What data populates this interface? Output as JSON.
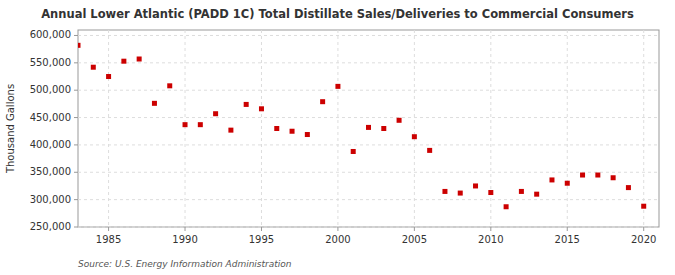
{
  "chart_data": {
    "type": "scatter",
    "title": "Annual Lower Atlantic (PADD 1C) Total Distillate Sales/Deliveries to Commercial Consumers",
    "ylabel": "Thousand Gallons",
    "source": "Source: U.S. Energy Information Administration",
    "x": [
      1983,
      1984,
      1985,
      1986,
      1987,
      1988,
      1989,
      1990,
      1991,
      1992,
      1993,
      1994,
      1995,
      1996,
      1997,
      1998,
      1999,
      2000,
      2001,
      2002,
      2003,
      2004,
      2005,
      2006,
      2007,
      2008,
      2009,
      2010,
      2011,
      2012,
      2013,
      2014,
      2015,
      2016,
      2017,
      2018,
      2019,
      2020
    ],
    "values": [
      582000,
      542000,
      525000,
      553000,
      557000,
      476000,
      508000,
      437000,
      437000,
      457000,
      427000,
      474000,
      466000,
      430000,
      425000,
      419000,
      479000,
      507000,
      388000,
      432000,
      430000,
      445000,
      415000,
      390000,
      315000,
      312000,
      325000,
      313000,
      287000,
      315000,
      310000,
      336000,
      330000,
      345000,
      345000,
      340000,
      322000,
      288000
    ],
    "color": "#cc0000",
    "marker": "square",
    "xlim": [
      1983,
      2021
    ],
    "ylim": [
      250000,
      610000
    ],
    "xticks": [
      1985,
      1990,
      1995,
      2000,
      2005,
      2010,
      2015,
      2020
    ],
    "yticks": [
      {
        "value": 250000,
        "label": "250,000"
      },
      {
        "value": 300000,
        "label": "300,000"
      },
      {
        "value": 350000,
        "label": "350,000"
      },
      {
        "value": 400000,
        "label": "400,000"
      },
      {
        "value": 450000,
        "label": "450,000"
      },
      {
        "value": 500000,
        "label": "500,000"
      },
      {
        "value": 550000,
        "label": "550,000"
      },
      {
        "value": 600000,
        "label": "600,000"
      }
    ],
    "grid": true
  }
}
